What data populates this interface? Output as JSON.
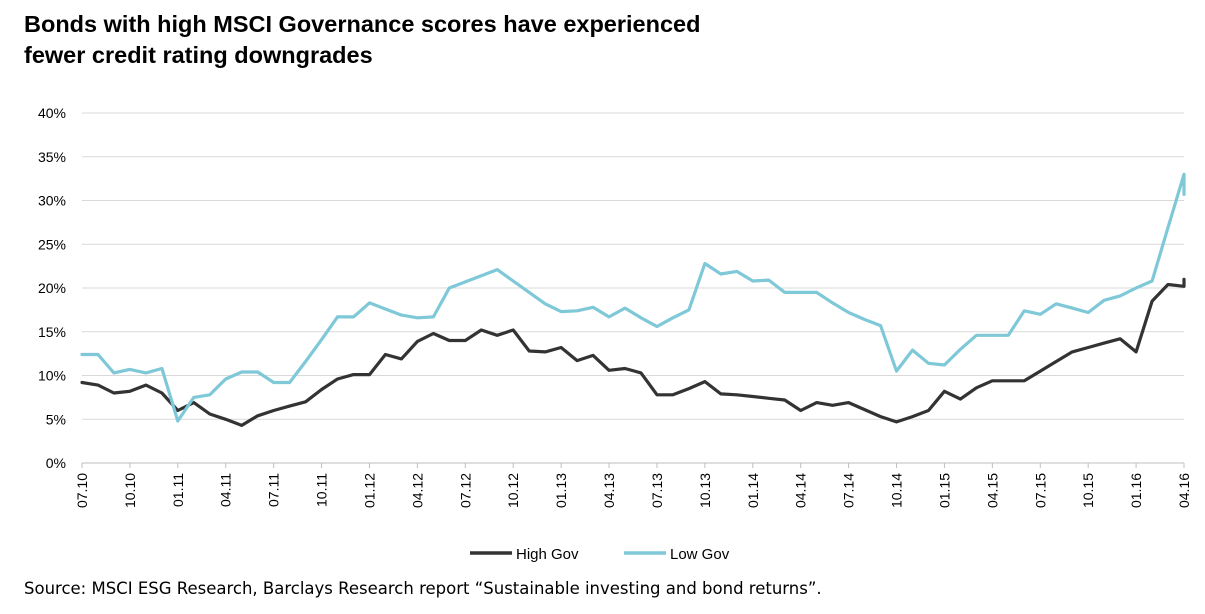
{
  "title_lines": [
    "Bonds with high MSCI Governance scores have experienced",
    "fewer credit rating downgrades"
  ],
  "source": "Source: MSCI ESG Research, Barclays Research report “Sustainable investing and bond returns”.",
  "chart_data": {
    "type": "line",
    "title": "Bonds with high MSCI Governance scores have experienced fewer credit rating downgrades",
    "xlabel": "",
    "ylabel": "",
    "ylim": [
      0,
      40
    ],
    "yticks": [
      0,
      5,
      10,
      15,
      20,
      25,
      30,
      35,
      40
    ],
    "ytick_labels": [
      "0%",
      "5%",
      "10%",
      "15%",
      "20%",
      "25%",
      "30%",
      "35%",
      "40%"
    ],
    "xlim": [
      "2010-07",
      "2016-04"
    ],
    "xtick_labels": [
      "07.10",
      "10.10",
      "01.11",
      "04.11",
      "07.11",
      "10.11",
      "01.12",
      "04.12",
      "07.12",
      "10.12",
      "01.13",
      "04.13",
      "07.13",
      "10.13",
      "01.14",
      "04.14",
      "07.14",
      "10.14",
      "01.15",
      "04.15",
      "07.15",
      "10.15",
      "01.16",
      "04.16"
    ],
    "grid": "horizontal",
    "legend_position": "bottom-center",
    "series": [
      {
        "name": "High Gov",
        "color": "#333333",
        "points": [
          [
            "2010-07",
            9.2
          ],
          [
            "2010-08",
            8.9
          ],
          [
            "2010-09",
            8.0
          ],
          [
            "2010-10",
            8.2
          ],
          [
            "2010-11",
            8.9
          ],
          [
            "2010-12",
            8.0
          ],
          [
            "2011-01",
            6.0
          ],
          [
            "2011-02",
            6.9
          ],
          [
            "2011-03",
            5.6
          ],
          [
            "2011-04",
            5.0
          ],
          [
            "2011-05",
            4.3
          ],
          [
            "2011-06",
            5.4
          ],
          [
            "2011-07",
            6.0
          ],
          [
            "2011-08",
            6.5
          ],
          [
            "2011-09",
            7.0
          ],
          [
            "2011-10",
            8.4
          ],
          [
            "2011-11",
            9.6
          ],
          [
            "2011-12",
            10.1
          ],
          [
            "2012-01",
            10.1
          ],
          [
            "2012-02",
            12.4
          ],
          [
            "2012-03",
            11.9
          ],
          [
            "2012-04",
            13.9
          ],
          [
            "2012-05",
            14.8
          ],
          [
            "2012-06",
            14.0
          ],
          [
            "2012-07",
            14.0
          ],
          [
            "2012-08",
            15.2
          ],
          [
            "2012-09",
            14.6
          ],
          [
            "2012-10",
            15.2
          ],
          [
            "2012-11",
            12.8
          ],
          [
            "2012-12",
            12.7
          ],
          [
            "2013-01",
            13.2
          ],
          [
            "2013-02",
            11.7
          ],
          [
            "2013-03",
            12.3
          ],
          [
            "2013-04",
            10.6
          ],
          [
            "2013-05",
            10.8
          ],
          [
            "2013-06",
            10.3
          ],
          [
            "2013-07",
            7.8
          ],
          [
            "2013-08",
            7.8
          ],
          [
            "2013-09",
            8.5
          ],
          [
            "2013-10",
            9.3
          ],
          [
            "2013-11",
            7.9
          ],
          [
            "2013-12",
            7.8
          ],
          [
            "2014-01",
            7.6
          ],
          [
            "2014-02",
            7.4
          ],
          [
            "2014-03",
            7.2
          ],
          [
            "2014-04",
            6.0
          ],
          [
            "2014-05",
            6.9
          ],
          [
            "2014-06",
            6.6
          ],
          [
            "2014-07",
            6.9
          ],
          [
            "2014-08",
            6.1
          ],
          [
            "2014-09",
            5.3
          ],
          [
            "2014-10",
            4.7
          ],
          [
            "2014-11",
            5.3
          ],
          [
            "2014-12",
            6.0
          ],
          [
            "2015-01",
            8.2
          ],
          [
            "2015-02",
            7.3
          ],
          [
            "2015-03",
            8.6
          ],
          [
            "2015-04",
            9.4
          ],
          [
            "2015-05",
            9.4
          ],
          [
            "2015-06",
            9.4
          ],
          [
            "2015-07",
            10.5
          ],
          [
            "2015-08",
            11.6
          ],
          [
            "2015-09",
            12.7
          ],
          [
            "2015-10",
            13.2
          ],
          [
            "2015-11",
            13.7
          ],
          [
            "2015-12",
            14.2
          ],
          [
            "2016-01",
            12.7
          ],
          [
            "2016-02",
            18.5
          ],
          [
            "2016-03",
            20.4
          ],
          [
            "2016-04",
            20.2
          ],
          [
            "2016-05",
            21.0
          ]
        ]
      },
      {
        "name": "Low Gov",
        "color": "#7ec8d8",
        "points": [
          [
            "2010-07",
            12.4
          ],
          [
            "2010-08",
            12.4
          ],
          [
            "2010-09",
            10.3
          ],
          [
            "2010-10",
            10.7
          ],
          [
            "2010-11",
            10.3
          ],
          [
            "2010-12",
            10.8
          ],
          [
            "2011-01",
            4.8
          ],
          [
            "2011-02",
            7.5
          ],
          [
            "2011-03",
            7.8
          ],
          [
            "2011-04",
            9.6
          ],
          [
            "2011-05",
            10.4
          ],
          [
            "2011-06",
            10.4
          ],
          [
            "2011-07",
            9.2
          ],
          [
            "2011-08",
            9.2
          ],
          [
            "2011-09",
            11.6
          ],
          [
            "2011-10",
            14.1
          ],
          [
            "2011-11",
            16.7
          ],
          [
            "2011-12",
            16.7
          ],
          [
            "2012-01",
            18.3
          ],
          [
            "2012-02",
            17.6
          ],
          [
            "2012-03",
            16.9
          ],
          [
            "2012-04",
            16.6
          ],
          [
            "2012-05",
            16.7
          ],
          [
            "2012-06",
            20.0
          ],
          [
            "2012-07",
            20.7
          ],
          [
            "2012-08",
            21.4
          ],
          [
            "2012-09",
            22.1
          ],
          [
            "2012-10",
            20.8
          ],
          [
            "2012-11",
            19.5
          ],
          [
            "2012-12",
            18.2
          ],
          [
            "2013-01",
            17.3
          ],
          [
            "2013-02",
            17.4
          ],
          [
            "2013-03",
            17.8
          ],
          [
            "2013-04",
            16.7
          ],
          [
            "2013-05",
            17.7
          ],
          [
            "2013-06",
            16.6
          ],
          [
            "2013-07",
            15.6
          ],
          [
            "2013-08",
            16.6
          ],
          [
            "2013-09",
            17.5
          ],
          [
            "2013-10",
            22.8
          ],
          [
            "2013-11",
            21.6
          ],
          [
            "2013-12",
            21.9
          ],
          [
            "2014-01",
            20.8
          ],
          [
            "2014-02",
            20.9
          ],
          [
            "2014-03",
            19.5
          ],
          [
            "2014-04",
            19.5
          ],
          [
            "2014-05",
            19.5
          ],
          [
            "2014-06",
            18.3
          ],
          [
            "2014-07",
            17.2
          ],
          [
            "2014-08",
            16.4
          ],
          [
            "2014-09",
            15.7
          ],
          [
            "2014-10",
            10.5
          ],
          [
            "2014-11",
            12.9
          ],
          [
            "2014-12",
            11.4
          ],
          [
            "2015-01",
            11.2
          ],
          [
            "2015-02",
            13.0
          ],
          [
            "2015-03",
            14.6
          ],
          [
            "2015-04",
            14.6
          ],
          [
            "2015-05",
            14.6
          ],
          [
            "2015-06",
            17.4
          ],
          [
            "2015-07",
            17.0
          ],
          [
            "2015-08",
            18.2
          ],
          [
            "2015-09",
            17.7
          ],
          [
            "2015-10",
            17.2
          ],
          [
            "2015-11",
            18.6
          ],
          [
            "2015-12",
            19.1
          ],
          [
            "2016-01",
            20.0
          ],
          [
            "2016-02",
            20.8
          ],
          [
            "2016-03",
            26.9
          ],
          [
            "2016-04",
            33.0
          ],
          [
            "2016-05",
            30.7
          ]
        ]
      }
    ]
  }
}
